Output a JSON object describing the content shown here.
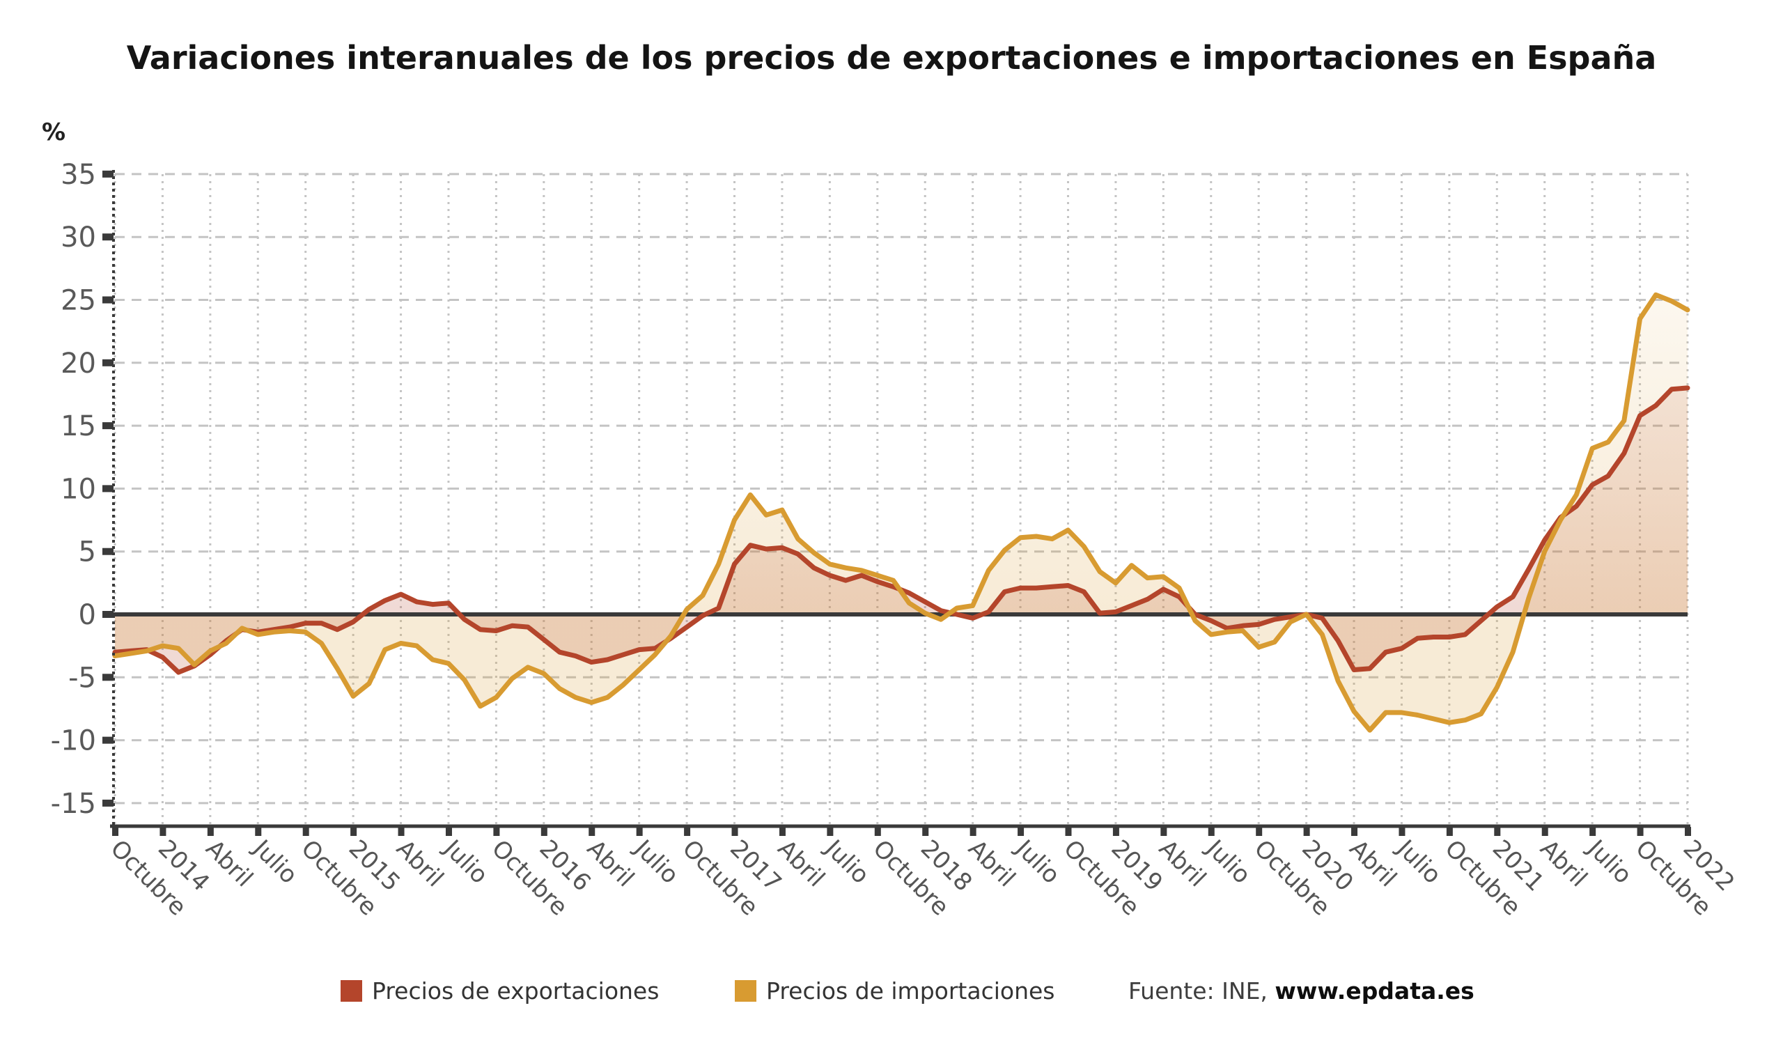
{
  "page": {
    "background": "#ffffff"
  },
  "chart_data": {
    "type": "line",
    "title": "Variaciones interanuales de los precios de exportaciones e importaciones en España",
    "unit_label": "%",
    "ylabel": "%",
    "xlabel": "",
    "ylim": [
      -15,
      35
    ],
    "y_ticks": [
      35,
      30,
      25,
      20,
      15,
      10,
      5,
      0,
      -5,
      -10,
      -15
    ],
    "grid": "horizontal dashed + vertical dotted",
    "legend_position": "bottom",
    "x_start": "Octubre 2013",
    "x_end": "Enero 2022",
    "x_tick_interval_months": 3,
    "x_tick_labels": [
      "Octubre",
      "2014",
      "Abril",
      "Julio",
      "Octubre",
      "2015",
      "Abril",
      "Julio",
      "Octubre",
      "2016",
      "Abril",
      "Julio",
      "Octubre",
      "2017",
      "Abril",
      "Julio",
      "Octubre",
      "2018",
      "Abril",
      "Julio",
      "Octubre",
      "2019",
      "Abril",
      "Julio",
      "Octubre",
      "2020",
      "Abril",
      "Julio",
      "Octubre",
      "2021",
      "Abril",
      "Julio",
      "Octubre",
      "2022"
    ],
    "series": [
      {
        "name": "Precios de exportaciones",
        "color": "#B4452B",
        "values": [
          -3.0,
          -2.9,
          -2.8,
          -3.4,
          -4.6,
          -4.1,
          -3.2,
          -2.1,
          -1.2,
          -1.4,
          -1.2,
          -1.0,
          -0.7,
          -0.7,
          -1.2,
          -0.6,
          0.4,
          1.1,
          1.6,
          1.0,
          0.8,
          0.9,
          -0.4,
          -1.2,
          -1.3,
          -0.9,
          -1.0,
          -2.0,
          -3.0,
          -3.3,
          -3.8,
          -3.6,
          -3.2,
          -2.8,
          -2.7,
          -1.9,
          -1.0,
          -0.1,
          0.5,
          4.0,
          5.5,
          5.2,
          5.3,
          4.8,
          3.7,
          3.1,
          2.7,
          3.1,
          2.6,
          2.2,
          1.7,
          1.0,
          0.3,
          0.0,
          -0.3,
          0.2,
          1.8,
          2.1,
          2.1,
          2.2,
          2.3,
          1.8,
          0.1,
          0.2,
          0.7,
          1.2,
          2.0,
          1.4,
          0.0,
          -0.5,
          -1.1,
          -0.9,
          -0.8,
          -0.4,
          -0.2,
          0.0,
          -0.3,
          -2.1,
          -4.4,
          -4.3,
          -3.0,
          -2.7,
          -1.9,
          -1.8,
          -1.8,
          -1.6,
          -0.5,
          0.6,
          1.4,
          3.6,
          5.9,
          7.7,
          8.6,
          10.3,
          11.0,
          12.8,
          15.8,
          16.6,
          17.9,
          18.0
        ]
      },
      {
        "name": "Precios de importaciones",
        "color": "#D89B31",
        "values": [
          -3.3,
          -3.1,
          -2.9,
          -2.5,
          -2.7,
          -4.0,
          -2.9,
          -2.3,
          -1.1,
          -1.6,
          -1.4,
          -1.3,
          -1.4,
          -2.3,
          -4.3,
          -6.5,
          -5.5,
          -2.8,
          -2.3,
          -2.5,
          -3.6,
          -3.9,
          -5.2,
          -7.3,
          -6.6,
          -5.1,
          -4.2,
          -4.7,
          -5.9,
          -6.6,
          -7.0,
          -6.6,
          -5.6,
          -4.4,
          -3.2,
          -1.7,
          0.4,
          1.5,
          4.0,
          7.5,
          9.5,
          7.9,
          8.3,
          6.0,
          4.9,
          4.0,
          3.7,
          3.5,
          3.1,
          2.7,
          0.9,
          0.1,
          -0.4,
          0.5,
          0.7,
          3.5,
          5.1,
          6.1,
          6.2,
          6.0,
          6.7,
          5.4,
          3.4,
          2.5,
          3.9,
          2.9,
          3.0,
          2.1,
          -0.5,
          -1.6,
          -1.4,
          -1.3,
          -2.6,
          -2.2,
          -0.6,
          0.0,
          -1.6,
          -5.3,
          -7.7,
          -9.2,
          -7.8,
          -7.8,
          -8.0,
          -8.3,
          -8.6,
          -8.4,
          -7.9,
          -5.8,
          -3.0,
          1.3,
          5.0,
          7.5,
          9.5,
          13.2,
          13.7,
          15.4,
          23.5,
          25.4,
          24.9,
          24.2
        ]
      }
    ]
  },
  "legend": {
    "items": [
      {
        "label": "Precios de exportaciones",
        "color": "#B4452B"
      },
      {
        "label": "Precios de importaciones",
        "color": "#D89B31"
      }
    ],
    "source_prefix": "Fuente: INE, ",
    "source_site": "www.epdata.es"
  },
  "style_colors": {
    "grid": "#c4c4c4",
    "axis": "#3a3a3a",
    "y_label": "#595959",
    "x_label": "#555555"
  }
}
